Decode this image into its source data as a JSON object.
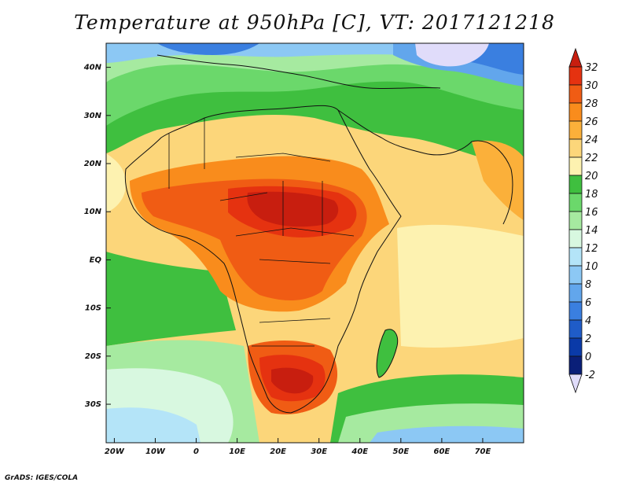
{
  "title": "Temperature at 950hPa [C], VT: 2017121218",
  "credit": "GrADS: IGES/COLA",
  "map": {
    "lon_range": [
      -22,
      80
    ],
    "lat_range": [
      -38,
      45
    ],
    "lat_ticks": [
      {
        "value": 40,
        "label": "40N"
      },
      {
        "value": 30,
        "label": "30N"
      },
      {
        "value": 20,
        "label": "20N"
      },
      {
        "value": 10,
        "label": "10N"
      },
      {
        "value": 0,
        "label": "EQ"
      },
      {
        "value": -10,
        "label": "10S"
      },
      {
        "value": -20,
        "label": "20S"
      },
      {
        "value": -30,
        "label": "30S"
      }
    ],
    "lon_ticks": [
      {
        "value": -20,
        "label": "20W"
      },
      {
        "value": -10,
        "label": "10W"
      },
      {
        "value": 0,
        "label": "0"
      },
      {
        "value": 10,
        "label": "10E"
      },
      {
        "value": 20,
        "label": "20E"
      },
      {
        "value": 30,
        "label": "30E"
      },
      {
        "value": 40,
        "label": "40E"
      },
      {
        "value": 50,
        "label": "50E"
      },
      {
        "value": 60,
        "label": "60E"
      },
      {
        "value": 70,
        "label": "70E"
      }
    ]
  },
  "colorbar": {
    "levels": [
      32,
      30,
      28,
      26,
      24,
      22,
      20,
      18,
      16,
      14,
      12,
      10,
      8,
      6,
      4,
      2,
      0,
      -2
    ],
    "labels": [
      "32",
      "30",
      "28",
      "26",
      "24",
      "22",
      "20",
      "18",
      "16",
      "14",
      "12",
      "10",
      "8",
      "6",
      "4",
      "2",
      "0",
      "-2"
    ],
    "colors": [
      "#c81e0f",
      "#e53210",
      "#f05c14",
      "#f98c1c",
      "#fbb03a",
      "#fcd67a",
      "#fdf2b0",
      "#3fbf3f",
      "#6bd86b",
      "#a6eaa0",
      "#d8f8e0",
      "#b4e4f8",
      "#8cc8f4",
      "#62a6ec",
      "#3a7fe0",
      "#1f5cc8",
      "#0a3aa8",
      "#0a1f78"
    ],
    "top_color": "#c81e0f",
    "bottom_color": "#e0dcfa"
  }
}
